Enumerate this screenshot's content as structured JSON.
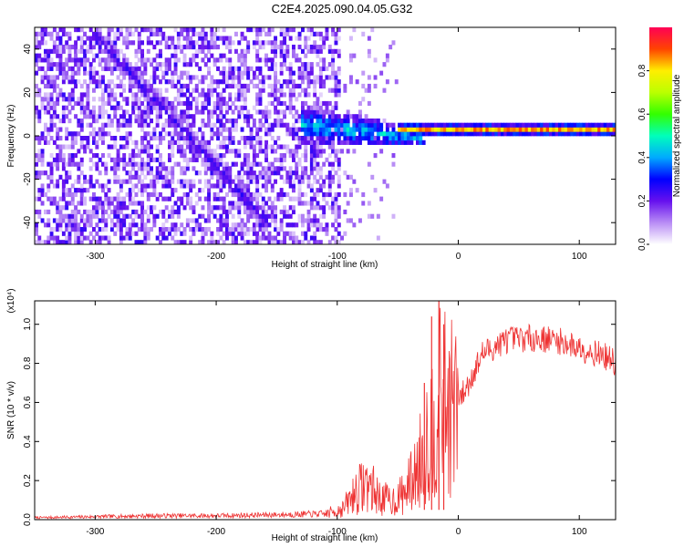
{
  "title": "C2E4.2025.090.04.05.G32",
  "chart_data": [
    {
      "type": "heatmap",
      "xlabel": "Height of straight line (km)",
      "ylabel": "Frequency (Hz)",
      "xlim": [
        -350,
        130
      ],
      "ylim": [
        -50,
        50
      ],
      "x_ticks": [
        -300,
        -200,
        -100,
        0,
        100
      ],
      "y_ticks": [
        -40,
        -20,
        0,
        20,
        40
      ],
      "x_tick_labels": [
        "-300",
        "-200",
        "-100",
        "0",
        "100"
      ],
      "y_tick_labels": [
        "-40",
        "-20",
        "0",
        "20",
        "40"
      ],
      "colorbar": {
        "label": "Normalized spectral amplitude",
        "range": [
          0,
          1
        ],
        "ticks": [
          0.0,
          0.2,
          0.4,
          0.6,
          0.8
        ],
        "tick_labels": [
          "0.0",
          "0.2",
          "0.4",
          "0.6",
          "0.8"
        ]
      },
      "features": {
        "dominant_band": {
          "x_start": -50,
          "x_end": 130,
          "frequency": 2,
          "amplitude": 0.9
        },
        "transition_band": {
          "x_start": -130,
          "x_end": -30,
          "frequency_start": 4,
          "frequency_end": -2,
          "amplitude": 0.35
        },
        "diagonal_streak": {
          "x_start": -300,
          "x_end": -160,
          "frequency_start": 45,
          "frequency_end": -40,
          "amplitude": 0.22
        },
        "noise_region": {
          "x_start": -350,
          "x_end": -100,
          "amplitude": 0.12
        }
      }
    },
    {
      "type": "line",
      "xlabel": "Height of straight line (km)",
      "ylabel": "SNR (10 * v/v)",
      "y_multiplier": "(x10⁴)",
      "xlim": [
        -350,
        130
      ],
      "ylim": [
        0,
        1.12
      ],
      "x_ticks": [
        -300,
        -200,
        -100,
        0,
        100
      ],
      "y_ticks": [
        0.0,
        0.2,
        0.4,
        0.6,
        0.8,
        1.0
      ],
      "x_tick_labels": [
        "-300",
        "-200",
        "-100",
        "0",
        "100"
      ],
      "y_tick_labels": [
        "0.0",
        "0.2",
        "0.4",
        "0.6",
        "0.8",
        "1.0"
      ],
      "color": "#ee3333",
      "series": [
        {
          "x": [
            -350,
            -300,
            -250,
            -200,
            -150,
            -110,
            -95,
            -85,
            -75,
            -65,
            -55,
            -45,
            -35,
            -25,
            -15,
            -5,
            5,
            20,
            40,
            60,
            80,
            100,
            120,
            130
          ],
          "values": [
            0.01,
            0.015,
            0.02,
            0.02,
            0.025,
            0.03,
            0.06,
            0.15,
            0.2,
            0.12,
            0.1,
            0.14,
            0.25,
            0.45,
            0.62,
            0.6,
            0.65,
            0.85,
            0.92,
            0.93,
            0.92,
            0.88,
            0.84,
            0.8
          ]
        }
      ],
      "spikes": [
        {
          "x": -16,
          "value": 1.12
        },
        {
          "x": -22,
          "value": 1.04
        },
        {
          "x": -12,
          "value": 1.0
        },
        {
          "x": -28,
          "value": 0.7
        }
      ]
    }
  ]
}
